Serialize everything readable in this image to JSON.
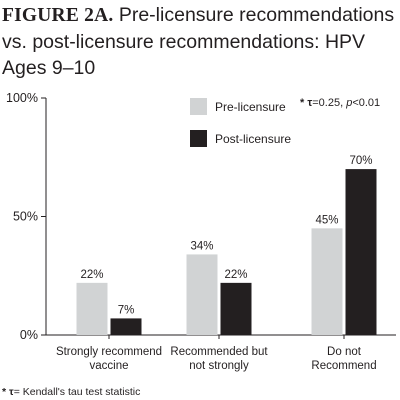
{
  "chart_data": {
    "type": "bar",
    "title_lead": "FIGURE 2A.",
    "title_rest": " Pre-licensure recommendations vs. post-licensure recommendations: HPV Ages 9–10",
    "categories": [
      [
        "Strongly recommend",
        "vaccine"
      ],
      [
        "Recommended but",
        "not strongly"
      ],
      [
        "Do not",
        "Recommend"
      ]
    ],
    "series": [
      {
        "name": "Pre-licensure",
        "values": [
          22,
          34,
          45
        ],
        "labels": [
          "22%",
          "34%",
          "45%"
        ],
        "color": "#d1d3d4"
      },
      {
        "name": "Post-licensure",
        "values": [
          7,
          22,
          70
        ],
        "labels": [
          "7%",
          "22%",
          "70%"
        ],
        "color": "#231f20"
      }
    ],
    "yticks": [
      "100%",
      "50%",
      "0%"
    ],
    "ylim": [
      0,
      100
    ],
    "xlabel": "",
    "ylabel": "",
    "grid": false,
    "legend": "top-center",
    "annotation": {
      "prefix": "* τ",
      "text": "=0.25, ",
      "p": "p",
      "rest": "<0.01"
    },
    "footnote": {
      "prefix": "* τ",
      "text": "= Kendall's tau test statistic"
    }
  }
}
